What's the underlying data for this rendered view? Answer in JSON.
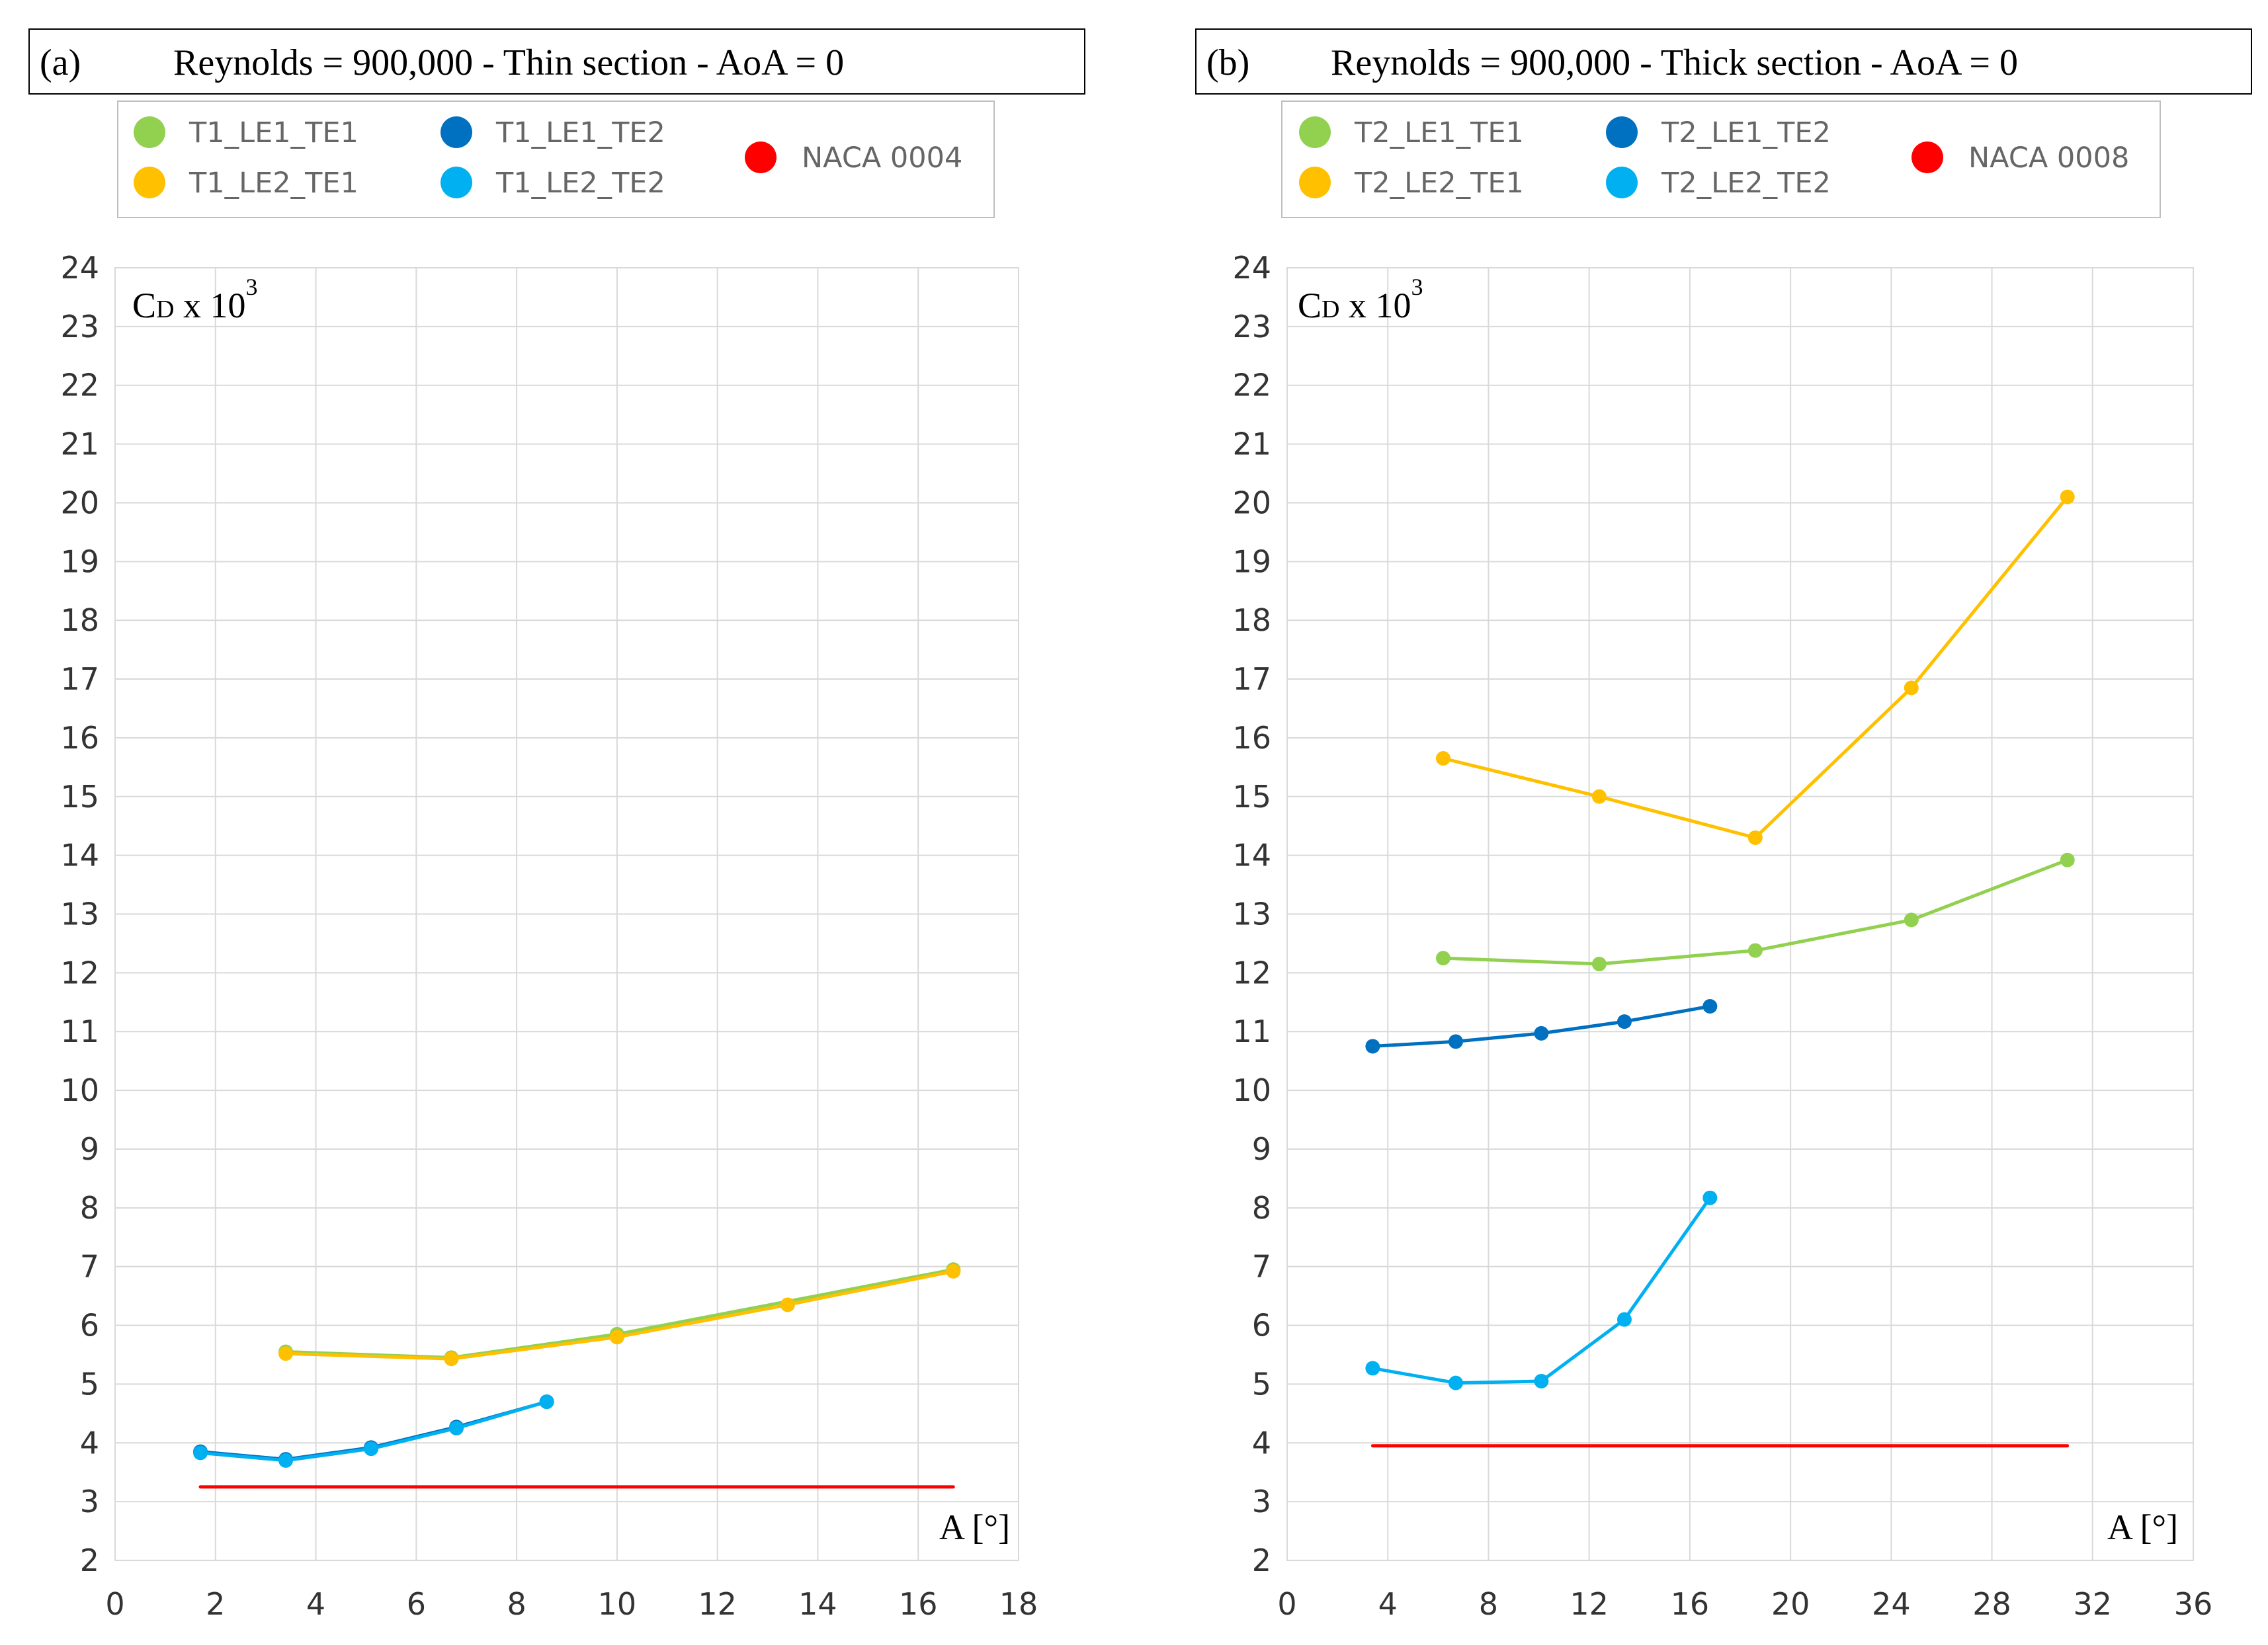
{
  "chart_data": [
    {
      "id": "a",
      "type": "line",
      "panel_label": "(a)",
      "title": "Reynolds = 900,000 - Thin section - AoA = 0",
      "xlabel": "A [°]",
      "ylabel": {
        "base": "C",
        "sub": "D",
        "mult": " x 10",
        "exp": "3"
      },
      "xlim": [
        0,
        18
      ],
      "ylim": [
        2,
        24
      ],
      "xticks": [
        "0",
        "2",
        "4",
        "6",
        "8",
        "10",
        "12",
        "14",
        "16",
        "18"
      ],
      "yticks": [
        "2",
        "3",
        "4",
        "5",
        "6",
        "7",
        "8",
        "9",
        "10",
        "11",
        "12",
        "13",
        "14",
        "15",
        "16",
        "17",
        "18",
        "19",
        "20",
        "21",
        "22",
        "23",
        "24"
      ],
      "grid": true,
      "legend_position": "top",
      "series": [
        {
          "name": "T1_LE1_TE1",
          "color": "#92d050",
          "markers": true,
          "x": [
            3.4,
            6.7,
            10.0,
            16.7
          ],
          "y": [
            5.55,
            5.45,
            5.85,
            6.95
          ]
        },
        {
          "name": "T1_LE2_TE1",
          "color": "#ffc000",
          "markers": true,
          "x": [
            3.4,
            6.7,
            10.0,
            13.4,
            16.7
          ],
          "y": [
            5.52,
            5.43,
            5.8,
            6.35,
            6.92
          ]
        },
        {
          "name": "T1_LE1_TE2",
          "color": "#0070c0",
          "markers": true,
          "x": [
            1.7,
            3.4,
            5.1,
            6.8,
            8.6
          ],
          "y": [
            3.85,
            3.72,
            3.92,
            4.27,
            4.7
          ]
        },
        {
          "name": "T1_LE2_TE2",
          "color": "#00b0f0",
          "markers": true,
          "x": [
            1.7,
            3.4,
            5.1,
            6.8,
            8.6
          ],
          "y": [
            3.83,
            3.7,
            3.9,
            4.25,
            4.7
          ]
        },
        {
          "name": "NACA 0004",
          "color": "#ff0000",
          "markers": false,
          "x": [
            1.7,
            16.7
          ],
          "y": [
            3.25,
            3.25
          ]
        }
      ]
    },
    {
      "id": "b",
      "type": "line",
      "panel_label": "(b)",
      "title": "Reynolds = 900,000 - Thick section - AoA = 0",
      "xlabel": "A [°]",
      "ylabel": {
        "base": "C",
        "sub": "D",
        "mult": " x 10",
        "exp": "3"
      },
      "xlim": [
        0,
        36
      ],
      "ylim": [
        2,
        24
      ],
      "xticks": [
        "0",
        "4",
        "8",
        "12",
        "16",
        "20",
        "24",
        "28",
        "32",
        "36"
      ],
      "yticks": [
        "2",
        "3",
        "4",
        "5",
        "6",
        "7",
        "8",
        "9",
        "10",
        "11",
        "12",
        "13",
        "14",
        "15",
        "16",
        "17",
        "18",
        "19",
        "20",
        "21",
        "22",
        "23",
        "24"
      ],
      "grid": true,
      "legend_position": "top",
      "series": [
        {
          "name": "T2_LE1_TE1",
          "color": "#92d050",
          "markers": true,
          "x": [
            6.2,
            12.4,
            18.6,
            24.8,
            31.0
          ],
          "y": [
            12.25,
            12.15,
            12.38,
            12.9,
            13.92
          ]
        },
        {
          "name": "T2_LE2_TE1",
          "color": "#ffc000",
          "markers": true,
          "x": [
            6.2,
            12.4,
            18.6,
            24.8,
            31.0
          ],
          "y": [
            15.65,
            15.0,
            14.3,
            16.85,
            20.1
          ]
        },
        {
          "name": "T2_LE1_TE2",
          "color": "#0070c0",
          "markers": true,
          "x": [
            3.4,
            6.7,
            10.1,
            13.4,
            16.8
          ],
          "y": [
            10.75,
            10.83,
            10.97,
            11.17,
            11.43
          ]
        },
        {
          "name": "T2_LE2_TE2",
          "color": "#00b0f0",
          "markers": true,
          "x": [
            3.4,
            6.7,
            10.1,
            13.4,
            16.8
          ],
          "y": [
            5.27,
            5.02,
            5.05,
            6.1,
            8.17
          ]
        },
        {
          "name": "NACA 0008",
          "color": "#ff0000",
          "markers": false,
          "x": [
            3.4,
            31.0
          ],
          "y": [
            3.95,
            3.95
          ]
        }
      ]
    }
  ]
}
